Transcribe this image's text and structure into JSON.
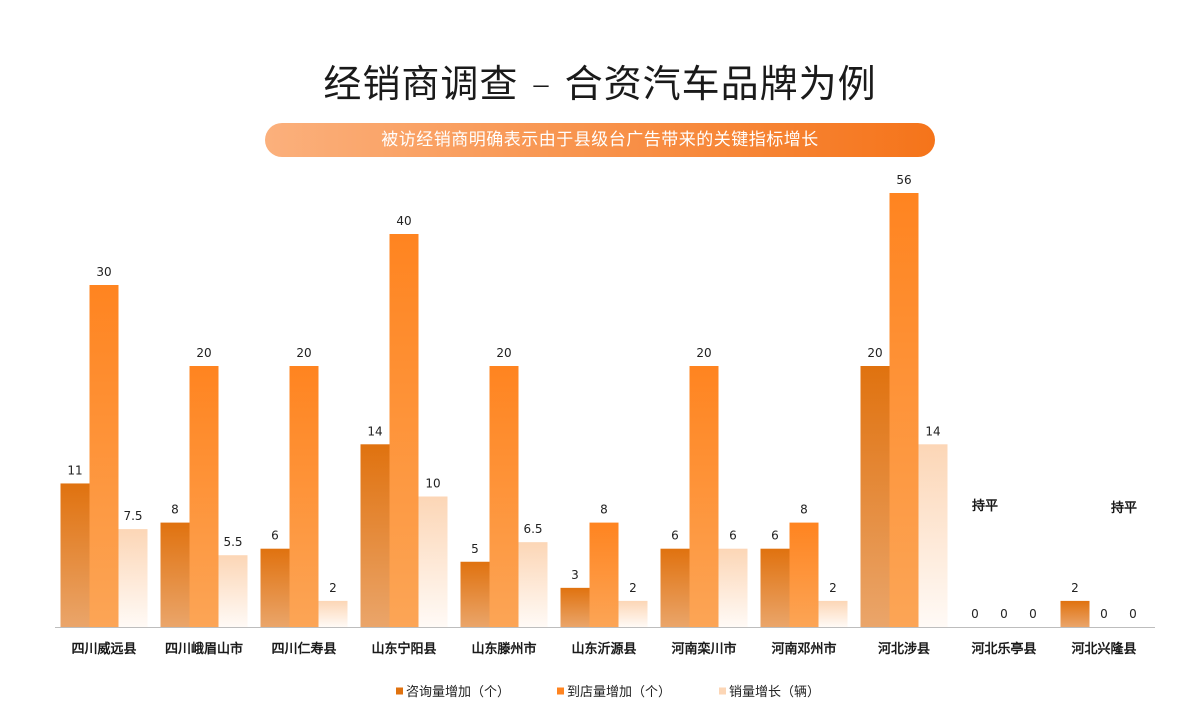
{
  "colors": {
    "banner_start": "#fbb07c",
    "banner_end": "#f5741a",
    "axis": "#bdbdbd",
    "text": "#1a1a1a"
  },
  "chart_data": {
    "type": "bar",
    "title": "经销商调查 – 合资汽车品牌为例",
    "subtitle": "被访经销商明确表示由于县级台广告带来的关键指标增长",
    "categories": [
      "四川威远县",
      "四川峨眉山市",
      "四川仁寿县",
      "山东宁阳县",
      "山东滕州市",
      "山东沂源县",
      "河南栾川市",
      "河南邓州市",
      "河北涉县",
      "河北乐亭县",
      "河北兴隆县"
    ],
    "series": [
      {
        "name": "咨询量增加（个）",
        "values": [
          11,
          8,
          6,
          14,
          5,
          3,
          6,
          6,
          20,
          0,
          2
        ],
        "color": "#e0720f",
        "color_light": "#eaa56a"
      },
      {
        "name": "到店量增加（个）",
        "values": [
          30,
          20,
          20,
          40,
          20,
          8,
          20,
          8,
          56,
          0,
          0
        ],
        "color": "#ff8420",
        "color_light": "#fca556"
      },
      {
        "name": "销量增长（辆）",
        "values": [
          7.5,
          5.5,
          2,
          10,
          6.5,
          2,
          6,
          2,
          14,
          0,
          0
        ],
        "color": "#fcd6b6",
        "color_light": "#fffaf6"
      }
    ],
    "annotations": [
      "",
      "",
      "",
      "",
      "",
      "",
      "",
      "",
      "",
      "持平",
      "持平"
    ],
    "value_labels": true,
    "y_axis_visible": false,
    "grid": false,
    "legend_position": "bottom"
  }
}
